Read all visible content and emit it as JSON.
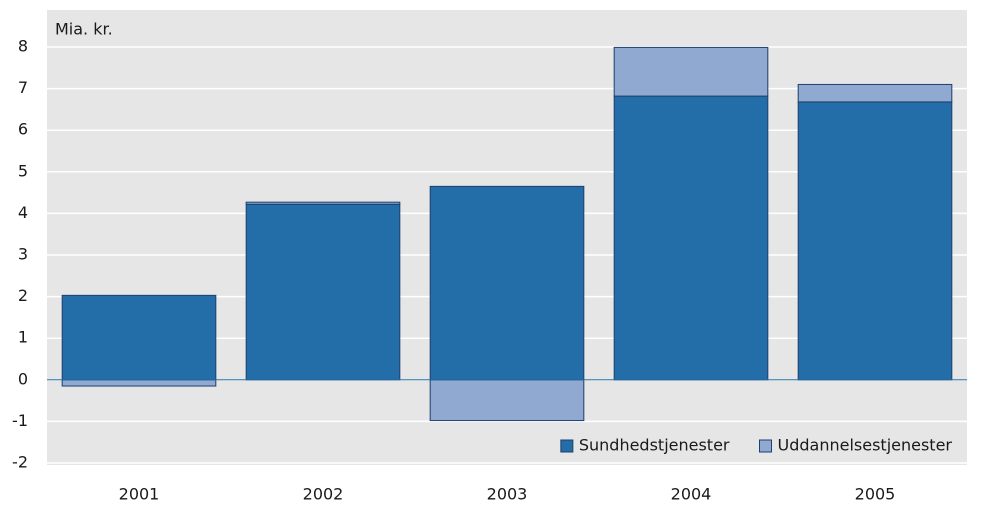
{
  "chart_data": {
    "type": "stacked_bar",
    "y_axis_label": "Mia. kr.",
    "categories": [
      "2001",
      "2002",
      "2003",
      "2004",
      "2005"
    ],
    "series": [
      {
        "name": "Sundhedstjenester",
        "color": "#236ea8",
        "values": [
          2.03,
          4.22,
          4.65,
          6.82,
          6.68
        ]
      },
      {
        "name": "Uddannelsestjenester",
        "color": "#8fa9d1",
        "values": [
          -0.15,
          0.05,
          -0.98,
          1.17,
          0.42
        ]
      }
    ],
    "ylim": [
      -2,
      8
    ],
    "yticks": [
      -2,
      -1,
      0,
      1,
      2,
      3,
      4,
      5,
      6,
      7,
      8
    ],
    "grid": true,
    "legend": "lower right"
  }
}
